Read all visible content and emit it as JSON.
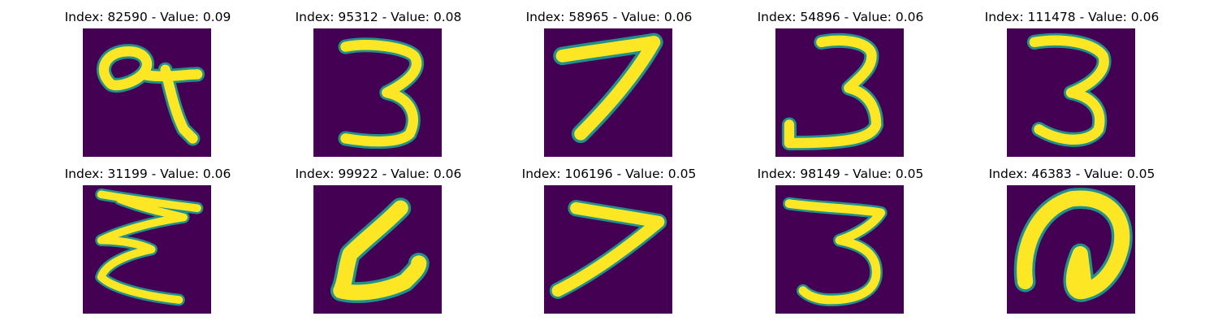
{
  "colors": {
    "background": "#440154",
    "mid": "#21918c",
    "stroke": "#fde725"
  },
  "panels": [
    {
      "title": "Index: 82590 - Value: 0.09",
      "digit": "9"
    },
    {
      "title": "Index: 95312 - Value: 0.08",
      "digit": "3"
    },
    {
      "title": "Index: 58965 - Value: 0.06",
      "digit": "7"
    },
    {
      "title": "Index: 54896 - Value: 0.06",
      "digit": "3"
    },
    {
      "title": "Index: 111478 - Value: 0.06",
      "digit": "3"
    },
    {
      "title": "Index: 31199 - Value: 0.06",
      "digit": "3"
    },
    {
      "title": "Index: 99922 - Value: 0.06",
      "digit": "7"
    },
    {
      "title": "Index: 106196 - Value: 0.05",
      "digit": "7"
    },
    {
      "title": "Index: 98149 - Value: 0.05",
      "digit": "3"
    },
    {
      "title": "Index: 46383 - Value: 0.05",
      "digit": "0"
    }
  ]
}
